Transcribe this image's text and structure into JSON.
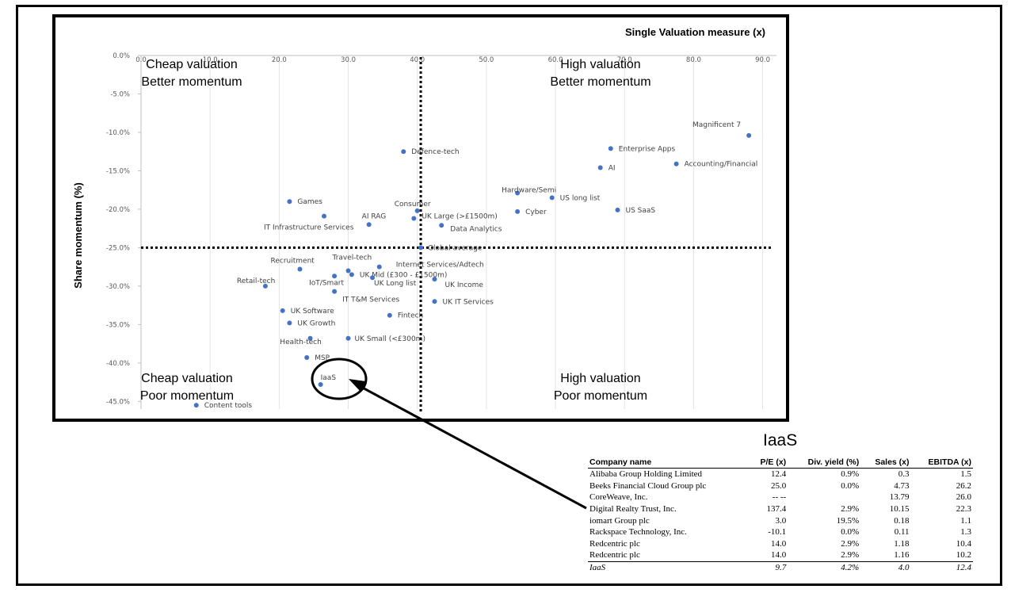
{
  "chart_data": {
    "type": "scatter",
    "title": "Single Valuation measure (x)",
    "xlabel": "",
    "ylabel": "Share momentum (%)",
    "xlim": [
      0,
      92
    ],
    "ylim": [
      -46,
      0
    ],
    "x_ticks": [
      "0.0",
      "10.0",
      "20.0",
      "30.0",
      "40.0",
      "50.0",
      "60.0",
      "70.0",
      "80.0",
      "90.0"
    ],
    "x_tick_values": [
      0,
      10,
      20,
      30,
      40,
      50,
      60,
      70,
      80,
      90
    ],
    "y_ticks": [
      "0.0%",
      "-5.0%",
      "-10.0%",
      "-15.0%",
      "-20.0%",
      "-25.0%",
      "-30.0%",
      "-35.0%",
      "-40.0%",
      "-45.0%"
    ],
    "y_tick_values": [
      0,
      -5,
      -10,
      -15,
      -20,
      -25,
      -30,
      -35,
      -40,
      -45
    ],
    "ref_x": 40.5,
    "ref_y": -25,
    "quadrants": {
      "top_left": [
        "Cheap valuation",
        "Better momentum"
      ],
      "top_right": [
        "High valuation",
        "Better momentum"
      ],
      "bottom_left": [
        "Cheap valuation",
        "Poor momentum"
      ],
      "bottom_right": [
        "High valuation",
        "Poor momentum"
      ]
    },
    "point_color": "#4472c4",
    "points": [
      {
        "label": "Magnificent 7",
        "x": 88.0,
        "y": -10.4
      },
      {
        "label": "Enterprise Apps",
        "x": 68.0,
        "y": -12.1
      },
      {
        "label": "Accounting/Financial",
        "x": 77.5,
        "y": -14.1
      },
      {
        "label": "AI",
        "x": 66.5,
        "y": -14.6
      },
      {
        "label": "Defence-tech",
        "x": 38.0,
        "y": -12.5
      },
      {
        "label": "Hardware/Semi",
        "x": 54.5,
        "y": -17.9
      },
      {
        "label": "US long list",
        "x": 59.5,
        "y": -18.5
      },
      {
        "label": "Cyber",
        "x": 54.5,
        "y": -20.3
      },
      {
        "label": "US SaaS",
        "x": 69.0,
        "y": -20.1
      },
      {
        "label": "Games",
        "x": 21.5,
        "y": -19.0
      },
      {
        "label": "IT Infrastructure Services",
        "x": 26.5,
        "y": -20.9
      },
      {
        "label": "AI RAG",
        "x": 33.0,
        "y": -22.0
      },
      {
        "label": "Consumer",
        "x": 40.0,
        "y": -20.2
      },
      {
        "label": "UK Large (>£1500m)",
        "x": 39.5,
        "y": -21.2
      },
      {
        "label": "Data Analytics",
        "x": 43.5,
        "y": -22.1
      },
      {
        "label": "Global average",
        "x": 40.5,
        "y": -25.0
      },
      {
        "label": "Internet Services/Adtech",
        "x": 34.5,
        "y": -27.5
      },
      {
        "label": "Recruitment",
        "x": 23.0,
        "y": -27.8
      },
      {
        "label": "Travel-tech",
        "x": 30.0,
        "y": -28.0
      },
      {
        "label": "UK Mid (£300 - £1500m)",
        "x": 30.5,
        "y": -28.5
      },
      {
        "label": "IoT/Smart",
        "x": 28.0,
        "y": -28.7
      },
      {
        "label": "UK Long list",
        "x": 33.5,
        "y": -28.9
      },
      {
        "label": "UK Income",
        "x": 42.5,
        "y": -29.1
      },
      {
        "label": "Retail-tech",
        "x": 18.0,
        "y": -30.0
      },
      {
        "label": "IT T&M Services",
        "x": 28.0,
        "y": -30.7
      },
      {
        "label": "UK IT Services",
        "x": 42.5,
        "y": -32.0
      },
      {
        "label": "UK Software",
        "x": 20.5,
        "y": -33.2
      },
      {
        "label": "Fintech",
        "x": 36.0,
        "y": -33.8
      },
      {
        "label": "UK Growth",
        "x": 21.5,
        "y": -34.8
      },
      {
        "label": "Health-tech",
        "x": 24.5,
        "y": -36.8
      },
      {
        "label": "UK Small (<£300m)",
        "x": 30.0,
        "y": -36.8
      },
      {
        "label": "MSP",
        "x": 24.0,
        "y": -39.3
      },
      {
        "label": "IaaS",
        "x": 26.0,
        "y": -42.8
      },
      {
        "label": "Content tools",
        "x": 8.0,
        "y": -45.5
      }
    ]
  },
  "table": {
    "title": "IaaS",
    "headers": [
      "Company name",
      "P/E (x)",
      "Div. yield (%)",
      "Sales (x)",
      "EBITDA (x)"
    ],
    "rows": [
      [
        "Alibaba Group Holding Limited",
        "12.4",
        "0.9%",
        "0.3",
        "1.5"
      ],
      [
        "Beeks Financial Cloud Group plc",
        "25.0",
        "0.0%",
        "4.73",
        "26.2"
      ],
      [
        "CoreWeave, Inc.",
        "-- --",
        "",
        "13.79",
        "26.0"
      ],
      [
        "Digital Realty Trust, Inc.",
        "137.4",
        "2.9%",
        "10.15",
        "22.3"
      ],
      [
        "iomart Group plc",
        "3.0",
        "19.5%",
        "0.18",
        "1.1"
      ],
      [
        "Rackspace Technology, Inc.",
        "-10.1",
        "0.0%",
        "0.11",
        "1.3"
      ],
      [
        "Redcentric plc",
        "14.0",
        "2.9%",
        "1.18",
        "10.4"
      ],
      [
        "Redcentric plc",
        "14.0",
        "2.9%",
        "1.16",
        "10.2"
      ]
    ],
    "summary": [
      "IaaS",
      "9.7",
      "4.2%",
      "4.0",
      "12.4"
    ]
  }
}
